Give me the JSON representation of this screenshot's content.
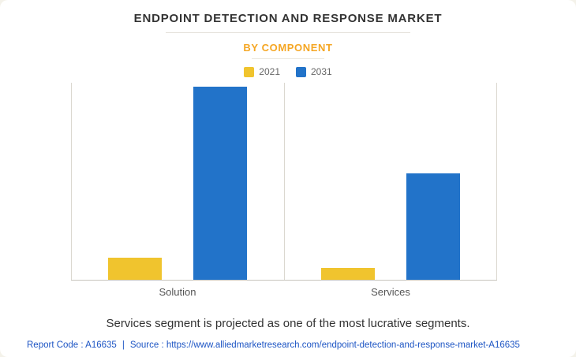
{
  "page": {
    "title": "ENDPOINT DETECTION AND RESPONSE MARKET",
    "subtitle": "BY COMPONENT",
    "note": "Services segment is projected as one of the most lucrative segments.",
    "footer": {
      "report_code": "Report Code : A16635",
      "separator": "|",
      "source_label": "Source :",
      "source_url": "https://www.alliedmarketresearch.com/endpoint-detection-and-response-market-A16635"
    }
  },
  "colors": {
    "series_2021": "#F0C42E",
    "series_2031": "#2273C9",
    "subtitle": "#F5A623",
    "link": "#1D55C4",
    "title_text": "#333333"
  },
  "chart_data": {
    "type": "bar",
    "title": "ENDPOINT DETECTION AND RESPONSE MARKET",
    "subtitle": "BY COMPONENT",
    "categories": [
      "Solution",
      "Services"
    ],
    "series": [
      {
        "name": "2021",
        "color": "#F0C42E",
        "values": [
          0.11,
          0.06
        ]
      },
      {
        "name": "2031",
        "color": "#2273C9",
        "values": [
          0.98,
          0.54
        ]
      }
    ],
    "xlabel": "",
    "ylabel": "",
    "ylim": [
      0,
      1
    ],
    "value_axis_labels_visible": false,
    "grid": "vertical category separators and baseline only",
    "legend_position": "top-center"
  }
}
